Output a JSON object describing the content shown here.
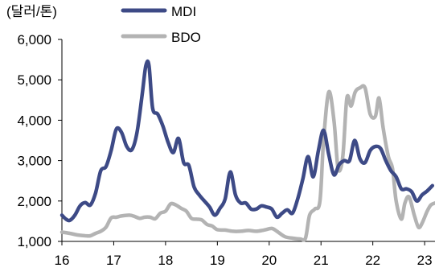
{
  "chart_data": {
    "type": "line",
    "unit_label": "(달러/톤)",
    "ylim": [
      1000,
      6000
    ],
    "y_ticks": [
      1000,
      2000,
      3000,
      4000,
      5000,
      6000
    ],
    "y_tick_labels": [
      "1,000",
      "2,000",
      "3,000",
      "4,000",
      "5,000",
      "6,000"
    ],
    "xlim": [
      16,
      23.2
    ],
    "x_ticks": [
      16,
      17,
      18,
      19,
      20,
      21,
      22,
      23
    ],
    "x_tick_labels": [
      "16",
      "17",
      "18",
      "19",
      "20",
      "21",
      "22",
      "23"
    ],
    "grid": false,
    "legend_position": "top-center",
    "series": [
      {
        "name": "MDI",
        "color": "#3d4a86",
        "points": [
          [
            16.0,
            1650
          ],
          [
            16.08,
            1550
          ],
          [
            16.15,
            1520
          ],
          [
            16.25,
            1650
          ],
          [
            16.35,
            1880
          ],
          [
            16.45,
            1960
          ],
          [
            16.55,
            1900
          ],
          [
            16.65,
            2200
          ],
          [
            16.75,
            2750
          ],
          [
            16.85,
            2850
          ],
          [
            16.95,
            3250
          ],
          [
            17.05,
            3780
          ],
          [
            17.15,
            3700
          ],
          [
            17.25,
            3350
          ],
          [
            17.35,
            3270
          ],
          [
            17.45,
            3700
          ],
          [
            17.55,
            4650
          ],
          [
            17.62,
            5350
          ],
          [
            17.68,
            5350
          ],
          [
            17.75,
            4300
          ],
          [
            17.85,
            4150
          ],
          [
            17.95,
            3850
          ],
          [
            18.05,
            3450
          ],
          [
            18.15,
            3200
          ],
          [
            18.25,
            3550
          ],
          [
            18.35,
            2950
          ],
          [
            18.45,
            2880
          ],
          [
            18.55,
            2350
          ],
          [
            18.65,
            2150
          ],
          [
            18.75,
            2000
          ],
          [
            18.85,
            1850
          ],
          [
            18.95,
            1650
          ],
          [
            19.05,
            1820
          ],
          [
            19.15,
            2050
          ],
          [
            19.25,
            2720
          ],
          [
            19.35,
            2150
          ],
          [
            19.45,
            1950
          ],
          [
            19.55,
            1950
          ],
          [
            19.65,
            1800
          ],
          [
            19.75,
            1800
          ],
          [
            19.85,
            1880
          ],
          [
            19.95,
            1850
          ],
          [
            20.05,
            1800
          ],
          [
            20.15,
            1600
          ],
          [
            20.25,
            1700
          ],
          [
            20.35,
            1780
          ],
          [
            20.45,
            1700
          ],
          [
            20.55,
            2050
          ],
          [
            20.65,
            2550
          ],
          [
            20.75,
            3100
          ],
          [
            20.85,
            2600
          ],
          [
            20.95,
            3250
          ],
          [
            21.05,
            3750
          ],
          [
            21.15,
            3150
          ],
          [
            21.25,
            2650
          ],
          [
            21.35,
            2900
          ],
          [
            21.45,
            3000
          ],
          [
            21.55,
            3000
          ],
          [
            21.65,
            3500
          ],
          [
            21.75,
            3050
          ],
          [
            21.85,
            2950
          ],
          [
            21.95,
            3250
          ],
          [
            22.05,
            3350
          ],
          [
            22.15,
            3300
          ],
          [
            22.25,
            3000
          ],
          [
            22.35,
            2750
          ],
          [
            22.45,
            2600
          ],
          [
            22.55,
            2300
          ],
          [
            22.65,
            2300
          ],
          [
            22.75,
            2230
          ],
          [
            22.85,
            2000
          ],
          [
            22.95,
            2150
          ],
          [
            23.05,
            2250
          ],
          [
            23.15,
            2380
          ]
        ]
      },
      {
        "name": "BDO",
        "color": "#b3b3b3",
        "points": [
          [
            16.0,
            1230
          ],
          [
            16.15,
            1200
          ],
          [
            16.3,
            1160
          ],
          [
            16.45,
            1140
          ],
          [
            16.55,
            1140
          ],
          [
            16.65,
            1200
          ],
          [
            16.75,
            1250
          ],
          [
            16.85,
            1350
          ],
          [
            16.95,
            1580
          ],
          [
            17.05,
            1600
          ],
          [
            17.15,
            1630
          ],
          [
            17.3,
            1650
          ],
          [
            17.4,
            1620
          ],
          [
            17.5,
            1570
          ],
          [
            17.6,
            1600
          ],
          [
            17.7,
            1600
          ],
          [
            17.8,
            1560
          ],
          [
            17.9,
            1700
          ],
          [
            18.0,
            1750
          ],
          [
            18.1,
            1930
          ],
          [
            18.2,
            1900
          ],
          [
            18.3,
            1820
          ],
          [
            18.4,
            1750
          ],
          [
            18.5,
            1570
          ],
          [
            18.6,
            1550
          ],
          [
            18.7,
            1530
          ],
          [
            18.8,
            1420
          ],
          [
            18.9,
            1380
          ],
          [
            19.0,
            1290
          ],
          [
            19.15,
            1280
          ],
          [
            19.3,
            1250
          ],
          [
            19.45,
            1250
          ],
          [
            19.6,
            1270
          ],
          [
            19.75,
            1250
          ],
          [
            19.9,
            1280
          ],
          [
            20.05,
            1320
          ],
          [
            20.15,
            1250
          ],
          [
            20.3,
            1120
          ],
          [
            20.45,
            1080
          ],
          [
            20.6,
            1060
          ],
          [
            20.7,
            1080
          ],
          [
            20.78,
            1650
          ],
          [
            20.88,
            1800
          ],
          [
            20.98,
            2000
          ],
          [
            21.05,
            3500
          ],
          [
            21.15,
            4700
          ],
          [
            21.25,
            4000
          ],
          [
            21.33,
            2800
          ],
          [
            21.42,
            3100
          ],
          [
            21.5,
            4550
          ],
          [
            21.58,
            4350
          ],
          [
            21.66,
            4700
          ],
          [
            21.75,
            4800
          ],
          [
            21.85,
            4800
          ],
          [
            21.95,
            4150
          ],
          [
            22.05,
            4100
          ],
          [
            22.12,
            4550
          ],
          [
            22.2,
            3800
          ],
          [
            22.3,
            3100
          ],
          [
            22.38,
            2800
          ],
          [
            22.45,
            2000
          ],
          [
            22.55,
            1550
          ],
          [
            22.62,
            1950
          ],
          [
            22.7,
            2100
          ],
          [
            22.8,
            1650
          ],
          [
            22.88,
            1350
          ],
          [
            22.95,
            1450
          ],
          [
            23.05,
            1750
          ],
          [
            23.12,
            1900
          ],
          [
            23.2,
            1950
          ]
        ]
      }
    ]
  }
}
